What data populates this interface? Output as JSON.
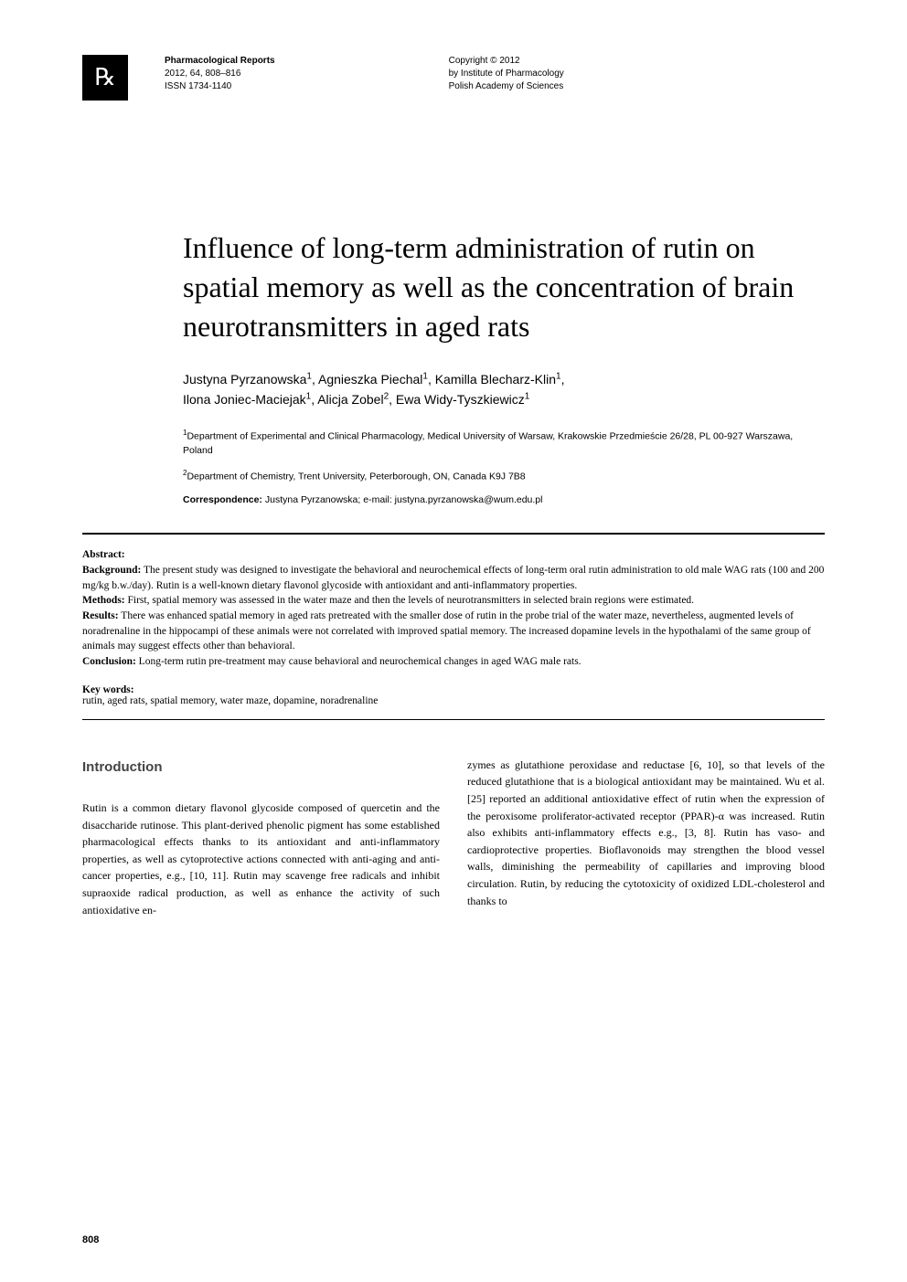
{
  "header": {
    "journal_name": "Pharmacological Reports",
    "journal_issue": "2012, 64, 808–816",
    "issn": "ISSN 1734-1140",
    "copyright_line1": "Copyright © 2012",
    "copyright_line2": "by Institute of Pharmacology",
    "copyright_line3": "Polish Academy of Sciences"
  },
  "title": "Influence of long-term administration of rutin on spatial memory as well as the concentration of brain neurotransmitters in aged rats",
  "authors_line1": "Justyna Pyrzanowska",
  "authors_sup1": "1",
  "authors_line1b": ", Agnieszka Piechal",
  "authors_sup2": "1",
  "authors_line1c": ", Kamilla Blecharz-Klin",
  "authors_sup3": "1",
  "authors_line1d": ",",
  "authors_line2": "Ilona Joniec-Maciejak",
  "authors_sup4": "1",
  "authors_line2b": ", Alicja Zobel",
  "authors_sup5": "2",
  "authors_line2c": ", Ewa Widy-Tyszkiewicz",
  "authors_sup6": "1",
  "affil1_sup": "1",
  "affil1": "Department of Experimental and Clinical Pharmacology, Medical University of Warsaw, Krakowskie Przedmieście 26/28, PL 00-927 Warszawa, Poland",
  "affil2_sup": "2",
  "affil2": "Department of Chemistry, Trent University, Peterborough, ON, Canada K9J 7B8",
  "corr_label": "Correspondence:",
  "corr_text": " Justyna Pyrzanowska; e-mail: justyna.pyrzanowska@wum.edu.pl",
  "abstract": {
    "heading": "Abstract:",
    "bg_label": "Background:",
    "bg_text": " The present study was designed to investigate the behavioral and neurochemical effects of long-term oral rutin administration to old male WAG rats (100 and 200 mg/kg b.w./day). Rutin is a well-known dietary flavonol glycoside with antioxidant and anti-inflammatory properties.",
    "methods_label": "Methods:",
    "methods_text": " First, spatial memory was assessed in the water maze and then the levels of neurotransmitters in selected brain regions were estimated.",
    "results_label": "Results:",
    "results_text": " There was enhanced spatial memory in aged rats pretreated with the smaller dose of rutin in the probe trial of the water maze, nevertheless, augmented levels of noradrenaline in the hippocampi of these animals were not correlated with improved spatial memory. The increased dopamine levels in the hypothalami of the same group of animals may suggest effects other than behavioral.",
    "concl_label": "Conclusion:",
    "concl_text": " Long-term rutin pre-treatment may cause behavioral and neurochemical changes in aged WAG male rats."
  },
  "keywords": {
    "heading": "Key words:",
    "text": "rutin, aged rats, spatial memory, water maze, dopamine, noradrenaline"
  },
  "intro": {
    "heading": "Introduction",
    "col1": "Rutin is a common dietary flavonol glycoside composed of quercetin and the disaccharide rutinose. This plant-derived phenolic pigment has some established pharmacological effects thanks to its antioxidant and anti-inflammatory properties, as well as cytoprotective actions connected with anti-aging and anti-cancer properties, e.g., [10, 11]. Rutin may scavenge free radicals and inhibit supraoxide radical production, as well as enhance the activity of such antioxidative en-",
    "col2": "zymes as glutathione peroxidase and reductase [6, 10], so that levels of the reduced glutathione that is a biological antioxidant may be maintained. Wu et al. [25] reported an additional antioxidative effect of rutin when the expression of the peroxisome proliferator-activated receptor (PPAR)-α was increased. Rutin also exhibits anti-inflammatory effects e.g., [3, 8]. Rutin has vaso- and cardioprotective properties. Bioflavonoids may strengthen the blood vessel walls, diminishing the permeability of capillaries and improving blood circulation. Rutin, by reducing the cytotoxicity of oxidized LDL-cholesterol and thanks to"
  },
  "page_number": "808",
  "colors": {
    "background": "#ffffff",
    "text": "#000000",
    "logo_bg": "#000000",
    "logo_fg": "#ffffff",
    "section_head": "#444444"
  }
}
